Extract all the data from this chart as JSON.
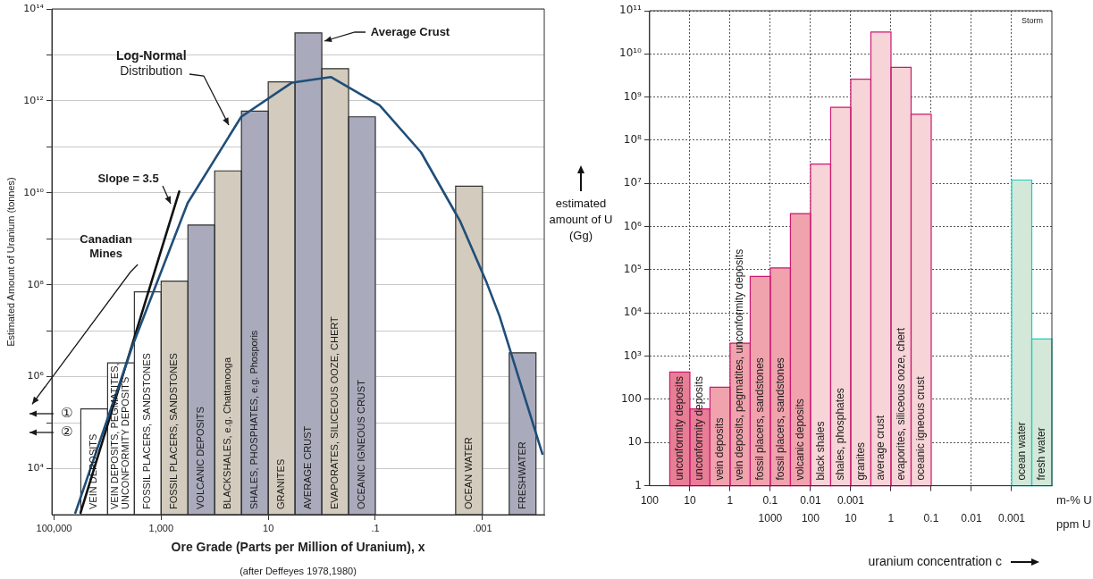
{
  "chart_data": [
    {
      "type": "histogram",
      "xlabel": "Ore Grade (Parts per Million of Uranium), x",
      "ylabel": "Estimated Amount of Uranium (tonnes)",
      "log": "xy",
      "grid": "y",
      "xlim": [
        110000,
        7e-05
      ],
      "xticks": [
        {
          "value": 100000,
          "label": "100,000"
        },
        {
          "value": 1000,
          "label": "1,000"
        },
        10,
        {
          "value": 0.1,
          "label": ".1"
        },
        {
          "value": 0.001,
          "label": ".001"
        }
      ],
      "ylim": [
        1000,
        100000000000000.0
      ],
      "yticks": [
        {
          "value": 10000,
          "label": "10⁴"
        },
        {
          "value": 100000,
          "label": null
        },
        {
          "value": 1000000,
          "label": "10⁶"
        },
        {
          "value": 10000000,
          "label": null
        },
        {
          "value": 100000000,
          "label": "10⁸"
        },
        {
          "value": 1000000000.0,
          "label": null
        },
        {
          "value": 10000000000.0,
          "label": "10¹⁰"
        },
        {
          "value": 100000000000.0,
          "label": null
        },
        {
          "value": 1000000000000.0,
          "label": "10¹²"
        },
        {
          "value": 10000000000000.0,
          "label": null
        },
        {
          "value": 100000000000000.0,
          "label": "10¹⁴"
        }
      ],
      "bins": [
        31623,
        10000,
        3162,
        1000,
        316.2,
        100,
        31.62,
        10,
        3.162,
        1,
        0.3162,
        0.1,
        0.03162,
        0.01,
        0.003162,
        0.001,
        0.0003162,
        0.0001
      ],
      "values": [
        200000,
        2000000,
        70000000,
        120000000,
        2000000000.0,
        30000000000.0,
        600000000000.0,
        2600000000000.0,
        30000000000000.0,
        5000000000000.0,
        450000000000.0,
        null,
        null,
        null,
        14000000000.0,
        null,
        3300000
      ],
      "colors": [
        "#ffffff",
        "#ffffff",
        "#ffffff",
        "#d3cbbd",
        "#a9abbc",
        "#d3cbbd",
        "#a9abbc",
        "#d3cbbd",
        "#a9abbc",
        "#d3cbbd",
        "#a9abbc",
        null,
        null,
        null,
        "#d3cbbd",
        null,
        "#a9abbc"
      ],
      "series": [
        {
          "type": "line",
          "color": "#1f4e79",
          "x": [
            40000,
            3500,
            320,
            32,
            3.6,
            0.68,
            0.083,
            0.014,
            0.0026,
            0.00083,
            0.00048,
            7.6e-05
          ],
          "values": [
            1100,
            4400000,
            6000000000.0,
            450000000000.0,
            2500000000000.0,
            3300000000000.0,
            800000000000.0,
            76000000000.0,
            2400000000.0,
            110000000,
            21000000,
            21000
          ]
        },
        {
          "type": "line",
          "color": "#111111",
          "x": [
            32000,
            460
          ],
          "values": [
            1100,
            10700000000.0
          ]
        }
      ],
      "annotations": [
        {
          "text": "Average Crust",
          "x": 0.9,
          "y": 20000000000000.0
        },
        {
          "text": "Log-Normal Distribution",
          "x": 50,
          "y": 250000000000.0
        },
        {
          "text": "Slope = 3.5",
          "x": 650,
          "y": 4800000000.0
        },
        "Canadian Mines",
        "①",
        "②",
        "(after Deffeyes 1978,1980)",
        {
          "text": "VEIN DEPOSITS",
          "x": 17783,
          "y": 1000
        },
        {
          "text": "VEIN DEPOSITS, PEGMATITES,\nUNCONFORMITY DEPOSITS",
          "x": 5623,
          "y": 1000
        },
        {
          "text": "FOSSIL PLACERS, SANDSTONES",
          "x": 1778,
          "y": 1000
        },
        {
          "text": "FOSSIL PLACERS, SANDSTONES",
          "x": 562,
          "y": 1000
        },
        {
          "text": "VOLCANIC DEPOSITS",
          "x": 178,
          "y": 1000
        },
        {
          "text": "BLACKSHALES, e.g. Chattanooga",
          "x": 56,
          "y": 1000
        },
        {
          "text": "SHALES, PHOSPHATES, e.g. Phosporis",
          "x": 17.8,
          "y": 1000
        },
        {
          "text": "GRANITES",
          "x": 5.6,
          "y": 1000
        },
        {
          "text": "AVERAGE CRUST",
          "x": 1.78,
          "y": 1000
        },
        {
          "text": "EVAPORATES, SILICEOUS OOZE, CHERT",
          "x": 0.56,
          "y": 1000
        },
        {
          "text": "OCEANIC IGNEOUS CRUST",
          "x": 0.178,
          "y": 1000
        },
        {
          "text": "OCEAN WATER",
          "x": 0.00178,
          "y": 1000
        },
        {
          "text": "FRESHWATER",
          "x": 0.000178,
          "y": 1000
        }
      ]
    },
    {
      "type": "histogram",
      "xlabel": "uranium concentration c",
      "ylabel": "estimated amount of U (Gg)",
      "log": "xy",
      "grid": true,
      "xlim": [
        1000000,
        0.0001
      ],
      "xticks": [
        {
          "value": 100000,
          "label": null
        },
        {
          "value": 10000,
          "label": null
        },
        1000,
        100,
        10,
        1,
        0.1,
        0.01,
        0.001
      ],
      "ylim": [
        1,
        100000000000.0
      ],
      "yticks": [
        1,
        10,
        100,
        {
          "value": 1000,
          "label": "10³"
        },
        {
          "value": 10000,
          "label": "10⁴"
        },
        {
          "value": 100000,
          "label": "10⁵"
        },
        {
          "value": 1000000,
          "label": "10⁶"
        },
        {
          "value": 10000000,
          "label": "10⁷"
        },
        {
          "value": 100000000,
          "label": "10⁸"
        },
        {
          "value": 1000000000.0,
          "label": "10⁹"
        },
        {
          "value": 10000000000.0,
          "label": "10¹⁰"
        },
        {
          "value": 100000000000.0,
          "label": "10¹¹"
        }
      ],
      "bins": [
        316228,
        100000,
        31623,
        10000,
        3162,
        1000,
        316.2,
        100,
        31.62,
        10,
        3.162,
        1,
        0.3162,
        0.1,
        0.03162,
        0.01,
        0.003162,
        0.001,
        0.0003162,
        0.0001
      ],
      "values": [
        430,
        60,
        190,
        2000,
        70000,
        110000,
        2000000,
        28000000,
        580000000.0,
        2600000000.0,
        32000000000.0,
        4900000000.0,
        400000000.0,
        null,
        null,
        null,
        null,
        12000000,
        2500
      ],
      "colors": [
        "#e87d96",
        "#e87d96",
        "#f0a3ad",
        "#f0a3ad",
        "#f0a3ad",
        "#f0a3ad",
        "#f0a3ad",
        "#f7d4d7",
        "#f7d4d7",
        "#f7d4d7",
        "#f7d4d7",
        "#f7d4d7",
        "#f7d4d7",
        null,
        null,
        null,
        null,
        "#d3e8d8",
        "#d3e8d8"
      ],
      "annotations": [
        "Storm",
        "m-% U",
        "ppm U",
        "100",
        "10",
        "1",
        "0.1",
        "0.01",
        "0.001",
        {
          "text": "unconformity deposits",
          "x": 177828,
          "y": 1
        },
        {
          "text": "unconformity deposits",
          "x": 56234,
          "y": 1
        },
        {
          "text": "vein deposits",
          "x": 17783,
          "y": 1
        },
        {
          "text": "vein deposits, pegmatites, unconformity deposits",
          "x": 5623,
          "y": 1
        },
        {
          "text": "fossil placers, sandstones",
          "x": 1778,
          "y": 1
        },
        {
          "text": "fossil placers, sandstones",
          "x": 562,
          "y": 1
        },
        {
          "text": "volcanic deposits",
          "x": 178,
          "y": 1
        },
        {
          "text": "black shales",
          "x": 56,
          "y": 1
        },
        {
          "text": "shales, phosphates",
          "x": 17.8,
          "y": 1
        },
        {
          "text": "granites",
          "x": 5.6,
          "y": 1
        },
        {
          "text": "average crust",
          "x": 1.78,
          "y": 1
        },
        {
          "text": "evaporites, siliceous ooze, chert",
          "x": 0.56,
          "y": 1
        },
        {
          "text": "oceanic igneous crust",
          "x": 0.178,
          "y": 1
        },
        {
          "text": "ocean water",
          "x": 0.00056,
          "y": 1
        },
        {
          "text": "fresh water",
          "x": 0.000178,
          "y": 1
        }
      ]
    }
  ]
}
